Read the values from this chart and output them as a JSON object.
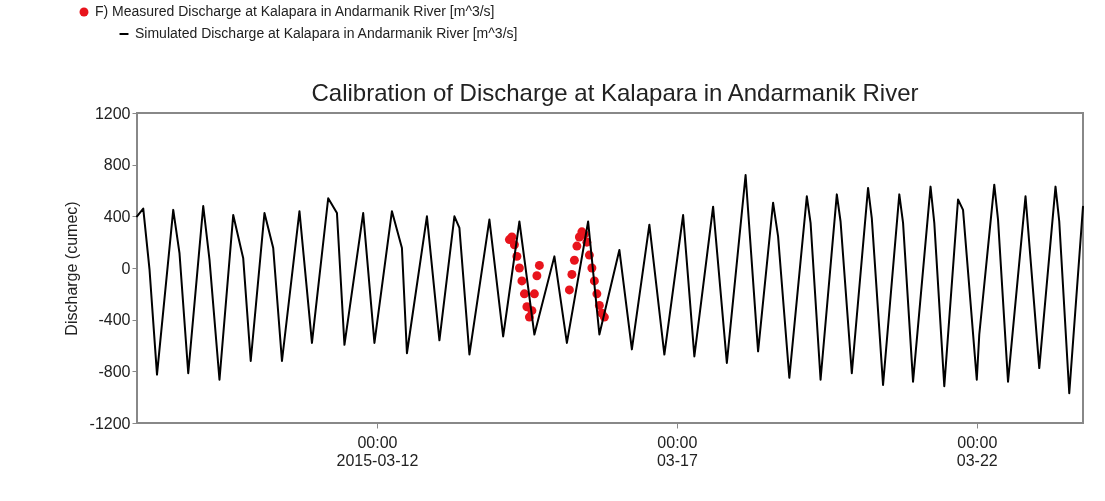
{
  "chart_data": {
    "type": "line",
    "title": "Calibration of Discharge at Kalapara in Andarmanik River",
    "ylabel": "Discharge (cumec)",
    "legend": "top",
    "grid": false,
    "xlim": [
      "2015-03-08T00:00",
      "2015-03-23T18:30"
    ],
    "xticks": [
      {
        "value": "2015-03-12T00:00",
        "label": "00:00\n2015-03-12"
      },
      {
        "value": "2015-03-17T00:00",
        "label": "00:00\n03-17"
      },
      {
        "value": "2015-03-22T00:00",
        "label": "00:00\n03-22"
      }
    ],
    "ylim": [
      -1200,
      1200
    ],
    "yticks": [
      -1200,
      -800,
      -400,
      0,
      400,
      800,
      1200
    ],
    "series": [
      {
        "name": "F) Measured Discharge at Kalapara in Andarmanik River [m^3/s]",
        "type": "scatter",
        "color": "#e8141c",
        "x": [
          "2015-03-14T05:00",
          "2015-03-14T06:00",
          "2015-03-14T07:00",
          "2015-03-14T08:00",
          "2015-03-14T09:00",
          "2015-03-14T10:00",
          "2015-03-14T11:00",
          "2015-03-14T12:00",
          "2015-03-14T13:00",
          "2015-03-14T14:00",
          "2015-03-14T15:00",
          "2015-03-14T16:00",
          "2015-03-14T17:00",
          "2015-03-15T05:00",
          "2015-03-15T06:00",
          "2015-03-15T07:00",
          "2015-03-15T08:00",
          "2015-03-15T09:00",
          "2015-03-15T10:00",
          "2015-03-15T11:00",
          "2015-03-15T12:00",
          "2015-03-15T13:00",
          "2015-03-15T14:00",
          "2015-03-15T15:00",
          "2015-03-15T16:00",
          "2015-03-15T17:00",
          "2015-03-15T18:00",
          "2015-03-15T19:00"
        ],
        "values": [
          220,
          240,
          180,
          90,
          0,
          -100,
          -200,
          -300,
          -380,
          -330,
          -200,
          -60,
          20,
          -170,
          -50,
          60,
          170,
          240,
          280,
          260,
          200,
          100,
          0,
          -100,
          -200,
          -290,
          -350,
          -380
        ]
      },
      {
        "name": "Simulated Discharge at Kalapara in Andarmanik River [m^3/s]",
        "type": "line",
        "color": "#000000",
        "x": [
          "2015-03-08T00:00",
          "2015-03-08T02:30",
          "2015-03-08T05:00",
          "2015-03-08T08:00",
          "2015-03-08T14:30",
          "2015-03-08T17:00",
          "2015-03-08T20:30",
          "2015-03-09T02:30",
          "2015-03-09T05:00",
          "2015-03-09T09:00",
          "2015-03-09T14:30",
          "2015-03-09T18:30",
          "2015-03-09T21:30",
          "2015-03-10T03:00",
          "2015-03-10T06:30",
          "2015-03-10T10:00",
          "2015-03-10T17:00",
          "2015-03-10T22:00",
          "2015-03-11T04:30",
          "2015-03-11T08:00",
          "2015-03-11T11:00",
          "2015-03-11T18:30",
          "2015-03-11T23:00",
          "2015-03-12T06:00",
          "2015-03-12T10:00",
          "2015-03-12T12:00",
          "2015-03-12T20:00",
          "2015-03-13T01:00",
          "2015-03-13T07:00",
          "2015-03-13T09:00",
          "2015-03-13T13:00",
          "2015-03-13T21:00",
          "2015-03-14T02:30",
          "2015-03-14T09:00",
          "2015-03-14T15:00",
          "2015-03-14T23:00",
          "2015-03-15T04:00",
          "2015-03-15T12:30",
          "2015-03-15T17:00",
          "2015-03-16T01:00",
          "2015-03-16T06:00",
          "2015-03-16T13:00",
          "2015-03-16T19:00",
          "2015-03-17T02:30",
          "2015-03-17T07:00",
          "2015-03-17T14:30",
          "2015-03-17T20:00",
          "2015-03-18T03:30",
          "2015-03-18T08:30",
          "2015-03-18T14:30",
          "2015-03-18T16:30",
          "2015-03-18T21:00",
          "2015-03-19T04:00",
          "2015-03-19T05:30",
          "2015-03-19T09:30",
          "2015-03-19T16:00",
          "2015-03-19T17:30",
          "2015-03-19T22:00",
          "2015-03-20T04:30",
          "2015-03-20T06:00",
          "2015-03-20T10:30",
          "2015-03-20T17:00",
          "2015-03-20T18:30",
          "2015-03-20T22:30",
          "2015-03-21T05:30",
          "2015-03-21T07:00",
          "2015-03-21T11:00",
          "2015-03-21T16:30",
          "2015-03-21T18:30",
          "2015-03-22T00:00",
          "2015-03-22T01:00",
          "2015-03-22T07:00",
          "2015-03-22T08:30",
          "2015-03-22T12:30",
          "2015-03-22T19:30",
          "2015-03-23T01:00",
          "2015-03-23T07:30",
          "2015-03-23T09:00",
          "2015-03-23T13:00",
          "2015-03-23T18:30"
        ],
        "values": [
          400,
          460,
          -10,
          -825,
          450,
          115,
          -815,
          480,
          65,
          -865,
          410,
          75,
          -720,
          425,
          155,
          -720,
          440,
          -580,
          540,
          425,
          -595,
          425,
          -580,
          440,
          155,
          -660,
          400,
          -560,
          400,
          310,
          -670,
          375,
          -530,
          360,
          -515,
          90,
          -580,
          360,
          -515,
          140,
          -630,
          335,
          -670,
          410,
          -685,
          475,
          -735,
          720,
          -645,
          505,
          245,
          -850,
          555,
          350,
          -865,
          570,
          360,
          -815,
          620,
          385,
          -905,
          570,
          350,
          -880,
          630,
          350,
          -915,
          530,
          450,
          -865,
          -515,
          645,
          375,
          -880,
          555,
          -775,
          630,
          360,
          -970,
          475
        ]
      }
    ]
  }
}
